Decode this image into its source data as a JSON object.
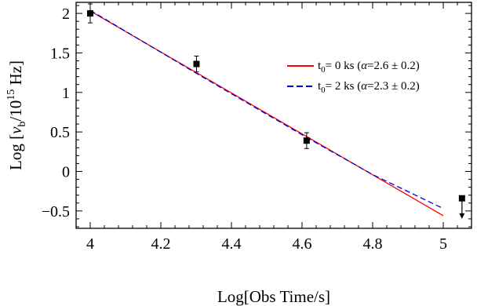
{
  "chart_data": {
    "type": "scatter",
    "xlabel": "Log[Obs Time/s]",
    "ylabel": "Log [νb/1015 Hz]",
    "ylabel_parts": {
      "pre": "Log [",
      "nu": "ν",
      "sub": "b",
      "mid": "/10",
      "sup": "15",
      "post": " Hz]"
    },
    "xlim": [
      3.96,
      5.08
    ],
    "ylim": [
      -0.72,
      2.14
    ],
    "x_ticks": [
      4,
      4.2,
      4.4,
      4.6,
      4.8,
      5
    ],
    "x_tick_labels": [
      "4",
      "4.2",
      "4.4",
      "4.6",
      "4.8",
      "5"
    ],
    "y_ticks": [
      -0.5,
      0,
      0.5,
      1,
      1.5,
      2
    ],
    "y_tick_labels": [
      "−0.5",
      "0",
      "0.5",
      "1",
      "1.5",
      "2"
    ],
    "grid": false,
    "legend_position": "upper-right",
    "points": [
      {
        "x": 4.0,
        "y": 2.0,
        "yerr": 0.12
      },
      {
        "x": 4.301,
        "y": 1.36,
        "yerr": 0.1
      },
      {
        "x": 4.613,
        "y": 0.39,
        "yerr": 0.1
      }
    ],
    "upper_limits": [
      {
        "x": 5.053,
        "y": -0.34,
        "arrow_to": -0.6
      }
    ],
    "series": [
      {
        "name": "t0= 0 ks (α=2.6 ± 0.2)",
        "label_parts": {
          "t": "t",
          "sub": "0",
          "rest": "= 0 ks (",
          "alpha": "α",
          "tail": "=2.6 ± 0.2)"
        },
        "color": "#ff0000",
        "style": "solid",
        "x": [
          4.0,
          5.0
        ],
        "y": [
          2.03,
          -0.56
        ]
      },
      {
        "name": "t0= 2 ks (α=2.3 ± 0.2)",
        "label_parts": {
          "t": "t",
          "sub": "0",
          "rest": "= 2 ks (",
          "alpha": "α",
          "tail": "=2.3 ± 0.2)"
        },
        "color": "#0000dd",
        "style": "dashed",
        "x": [
          4.0,
          4.301,
          4.613,
          4.8,
          5.0
        ],
        "y": [
          2.04,
          1.24,
          0.43,
          -0.04,
          -0.47
        ]
      }
    ]
  }
}
